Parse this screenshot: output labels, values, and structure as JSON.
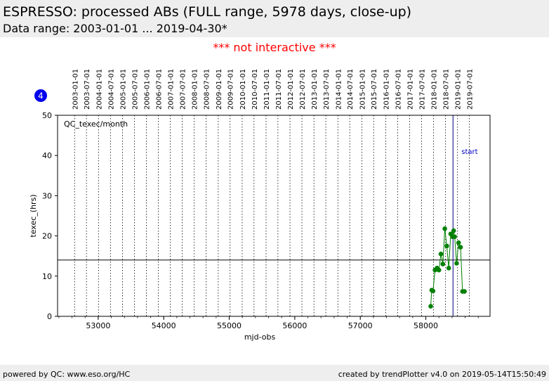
{
  "page": {
    "title": "ESPRESSO: processed ABs (FULL range, 5978 days, close-up)",
    "subtitle": "Data range: 2003-01-01 ... 2019-04-30*",
    "notice": "*** not interactive ***",
    "footer_left": "powered by QC: www.eso.org/HC",
    "footer_right": "created by trendPlotter v4.0 on 2019-05-14T15:50:49"
  },
  "colors": {
    "header_bg": "#eeeeee",
    "notice": "#ff0000",
    "series": "#008000",
    "start_line": "#000080",
    "start_label": "#0000cc",
    "badge": "#0000ee"
  },
  "chart_data": {
    "type": "line",
    "badge": "4",
    "panel_label": "QC_texec/month",
    "xlabel": "mjd-obs",
    "ylabel": "texec_(hrs)",
    "xlim": [
      52380,
      58980
    ],
    "ylim": [
      0,
      50
    ],
    "x_ticks": [
      53000,
      54000,
      55000,
      56000,
      57000,
      58000
    ],
    "y_ticks": [
      0,
      10,
      20,
      30,
      40,
      50
    ],
    "date_ticks": [
      {
        "mjd": 52640,
        "label": "2003-01-01"
      },
      {
        "mjd": 52821,
        "label": "2003-07-01"
      },
      {
        "mjd": 53005,
        "label": "2004-01-01"
      },
      {
        "mjd": 53187,
        "label": "2004-07-01"
      },
      {
        "mjd": 53371,
        "label": "2005-01-01"
      },
      {
        "mjd": 53552,
        "label": "2005-07-01"
      },
      {
        "mjd": 53736,
        "label": "2006-01-01"
      },
      {
        "mjd": 53917,
        "label": "2006-07-01"
      },
      {
        "mjd": 54101,
        "label": "2007-01-01"
      },
      {
        "mjd": 54282,
        "label": "2007-07-01"
      },
      {
        "mjd": 54466,
        "label": "2008-01-01"
      },
      {
        "mjd": 54648,
        "label": "2008-07-01"
      },
      {
        "mjd": 54832,
        "label": "2009-01-01"
      },
      {
        "mjd": 55013,
        "label": "2009-07-01"
      },
      {
        "mjd": 55197,
        "label": "2010-01-01"
      },
      {
        "mjd": 55378,
        "label": "2010-07-01"
      },
      {
        "mjd": 55562,
        "label": "2011-01-01"
      },
      {
        "mjd": 55743,
        "label": "2011-07-01"
      },
      {
        "mjd": 55927,
        "label": "2012-01-01"
      },
      {
        "mjd": 56109,
        "label": "2012-07-01"
      },
      {
        "mjd": 56293,
        "label": "2013-01-01"
      },
      {
        "mjd": 56474,
        "label": "2013-07-01"
      },
      {
        "mjd": 56658,
        "label": "2014-01-01"
      },
      {
        "mjd": 56839,
        "label": "2014-07-01"
      },
      {
        "mjd": 57023,
        "label": "2015-01-01"
      },
      {
        "mjd": 57204,
        "label": "2015-07-01"
      },
      {
        "mjd": 57388,
        "label": "2016-01-01"
      },
      {
        "mjd": 57570,
        "label": "2016-07-01"
      },
      {
        "mjd": 57754,
        "label": "2017-01-01"
      },
      {
        "mjd": 57935,
        "label": "2017-07-01"
      },
      {
        "mjd": 58119,
        "label": "2018-01-01"
      },
      {
        "mjd": 58300,
        "label": "2018-07-01"
      },
      {
        "mjd": 58484,
        "label": "2019-01-01"
      },
      {
        "mjd": 58665,
        "label": "2019-07-01"
      }
    ],
    "reference_line_y": 14,
    "start_marker": {
      "mjd": 58415,
      "label": "start"
    },
    "series": [
      {
        "x": [
          58075,
          58090,
          58110,
          58140,
          58170,
          58200,
          58230,
          58260,
          58290,
          58320,
          58350,
          58380,
          58410,
          58425,
          58440,
          58470,
          58500,
          58530,
          58560,
          58590
        ],
        "y": [
          2.5,
          6.5,
          6.3,
          11.5,
          12,
          11.5,
          15.5,
          13,
          21.8,
          17.5,
          12,
          20.5,
          19.8,
          21.3,
          19.8,
          13.2,
          18.3,
          17.2,
          6.2,
          6.2
        ]
      }
    ]
  }
}
